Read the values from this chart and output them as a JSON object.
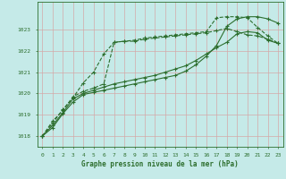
{
  "title": "Graphe pression niveau de la mer (hPa)",
  "background_color": "#c5eae8",
  "grid_color": "#d4a8a8",
  "line_color": "#2d6e2d",
  "xlim": [
    -0.5,
    23.5
  ],
  "ylim": [
    1017.5,
    1024.3
  ],
  "yticks": [
    1018,
    1019,
    1020,
    1021,
    1022,
    1023
  ],
  "xticks": [
    0,
    1,
    2,
    3,
    4,
    5,
    6,
    7,
    8,
    9,
    10,
    11,
    12,
    13,
    14,
    15,
    16,
    17,
    18,
    19,
    20,
    21,
    22,
    23
  ],
  "series": [
    {
      "x": [
        0,
        1,
        2,
        3,
        4,
        5,
        6,
        7,
        8,
        9,
        10,
        11,
        12,
        13,
        14,
        15,
        16,
        17,
        18,
        19,
        20,
        21,
        22,
        23
      ],
      "y": [
        1018.0,
        1018.6,
        1019.25,
        1019.8,
        1020.5,
        1021.0,
        1021.85,
        1022.4,
        1022.45,
        1022.5,
        1022.6,
        1022.65,
        1022.7,
        1022.75,
        1022.8,
        1022.85,
        1022.9,
        1023.55,
        1023.6,
        1023.6,
        1023.55,
        1023.1,
        1022.7,
        1022.35
      ],
      "linestyle": "--",
      "linewidth": 0.8,
      "marker": "+"
    },
    {
      "x": [
        0,
        1,
        2,
        3,
        4,
        5,
        6,
        7,
        8,
        9,
        10,
        11,
        12,
        13,
        14,
        15,
        16,
        17,
        18,
        19,
        20,
        21,
        22,
        23
      ],
      "y": [
        1018.0,
        1018.5,
        1019.1,
        1019.75,
        1020.0,
        1020.15,
        1020.3,
        1020.45,
        1020.55,
        1020.65,
        1020.75,
        1020.85,
        1021.0,
        1021.15,
        1021.3,
        1021.55,
        1021.85,
        1022.15,
        1022.4,
        1022.8,
        1022.9,
        1022.85,
        1022.5,
        1022.35
      ],
      "linestyle": "-",
      "linewidth": 0.8,
      "marker": "+"
    },
    {
      "x": [
        0,
        1,
        2,
        3,
        4,
        5,
        6,
        7,
        8,
        9,
        10,
        11,
        12,
        13,
        14,
        15,
        16,
        17,
        18,
        19,
        20,
        21,
        22,
        23
      ],
      "y": [
        1018.0,
        1018.4,
        1019.05,
        1019.6,
        1019.95,
        1020.05,
        1020.15,
        1020.25,
        1020.35,
        1020.45,
        1020.55,
        1020.65,
        1020.75,
        1020.85,
        1021.05,
        1021.35,
        1021.75,
        1022.25,
        1023.15,
        1023.5,
        1023.6,
        1023.6,
        1023.5,
        1023.3
      ],
      "linestyle": "-",
      "linewidth": 0.8,
      "marker": "+"
    },
    {
      "x": [
        0,
        1,
        2,
        3,
        4,
        5,
        6,
        7,
        8,
        9,
        10,
        11,
        12,
        13,
        14,
        15,
        16,
        17,
        18,
        19,
        20,
        21,
        22,
        23
      ],
      "y": [
        1018.0,
        1018.7,
        1019.2,
        1019.85,
        1020.1,
        1020.25,
        1020.45,
        1022.4,
        1022.45,
        1022.45,
        1022.55,
        1022.6,
        1022.65,
        1022.7,
        1022.75,
        1022.8,
        1022.85,
        1022.95,
        1023.05,
        1022.9,
        1022.75,
        1022.7,
        1022.55,
        1022.35
      ],
      "linestyle": "--",
      "linewidth": 0.8,
      "marker": "+"
    }
  ]
}
